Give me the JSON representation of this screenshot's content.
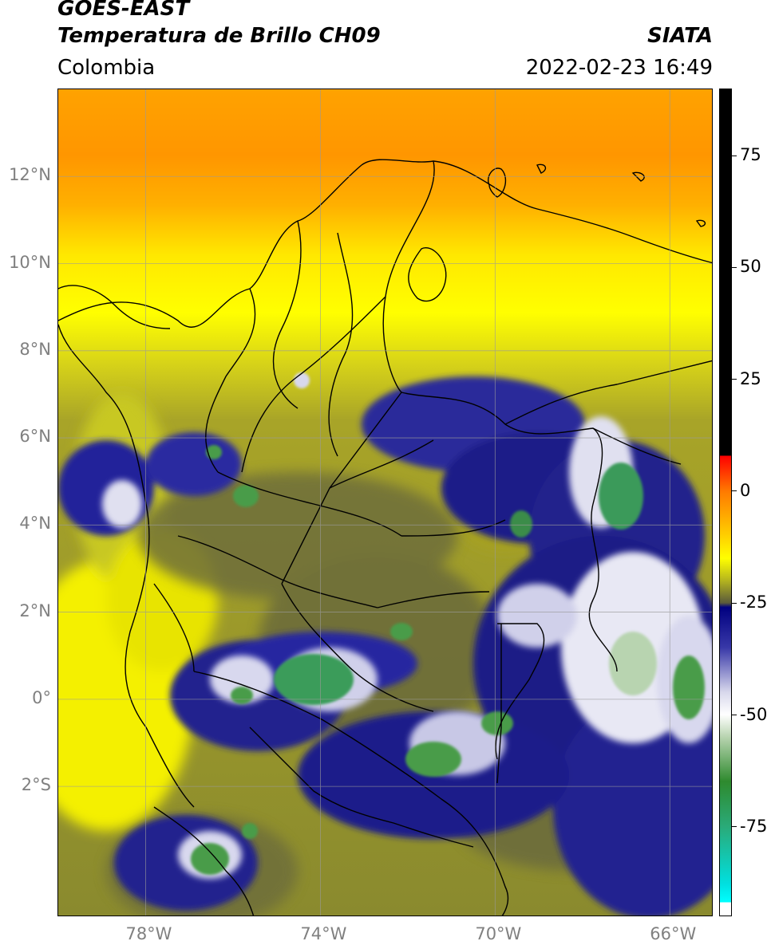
{
  "header": {
    "satellite": "GOES-EAST",
    "product": "Temperatura de Brillo CH09",
    "organization": "SIATA",
    "region": "Colombia",
    "datetime": "2022-02-23 16:49"
  },
  "map": {
    "extent": {
      "lon_min": -80,
      "lon_max": -65,
      "lat_min": -5,
      "lat_max": 14
    },
    "gridlines": true,
    "lon_ticks": [
      {
        "value": -78,
        "label": "78°W"
      },
      {
        "value": -74,
        "label": "74°W"
      },
      {
        "value": -70,
        "label": "70°W"
      },
      {
        "value": -66,
        "label": "66°W"
      }
    ],
    "lat_ticks": [
      {
        "value": 12,
        "label": "12°N"
      },
      {
        "value": 10,
        "label": "10°N"
      },
      {
        "value": 8,
        "label": "8°N"
      },
      {
        "value": 6,
        "label": "6°N"
      },
      {
        "value": 4,
        "label": "4°N"
      },
      {
        "value": 2,
        "label": "2°N"
      },
      {
        "value": 0,
        "label": "0°"
      },
      {
        "value": -2,
        "label": "2°S"
      }
    ]
  },
  "colorbar": {
    "range": [
      -95,
      90
    ],
    "ticks": [
      {
        "value": 75,
        "label": "75"
      },
      {
        "value": 50,
        "label": "50"
      },
      {
        "value": 25,
        "label": "25"
      },
      {
        "value": 0,
        "label": "0"
      },
      {
        "value": -25,
        "label": "-25"
      },
      {
        "value": -50,
        "label": "-50"
      },
      {
        "value": -75,
        "label": "-75"
      }
    ],
    "stops": [
      {
        "value": 90,
        "color": "#000000"
      },
      {
        "value": 8,
        "color": "#000000"
      },
      {
        "value": 7.9,
        "color": "#ff0000"
      },
      {
        "value": 0,
        "color": "#ff7a00"
      },
      {
        "value": -10,
        "color": "#ffd000"
      },
      {
        "value": -15,
        "color": "#ffff00"
      },
      {
        "value": -20,
        "color": "#b4b41e"
      },
      {
        "value": -25,
        "color": "#5a5a3c"
      },
      {
        "value": -26,
        "color": "#000080"
      },
      {
        "value": -35,
        "color": "#3838a8"
      },
      {
        "value": -45,
        "color": "#d8d8ec"
      },
      {
        "value": -50,
        "color": "#ffffff"
      },
      {
        "value": -55,
        "color": "#b8d4b0"
      },
      {
        "value": -65,
        "color": "#2e8a2e"
      },
      {
        "value": -75,
        "color": "#2aaa78"
      },
      {
        "value": -88,
        "color": "#00e0e0"
      },
      {
        "value": -92,
        "color": "#00ffff"
      },
      {
        "value": -92.1,
        "color": "#ffffff"
      },
      {
        "value": -95,
        "color": "#ffffff"
      }
    ]
  }
}
